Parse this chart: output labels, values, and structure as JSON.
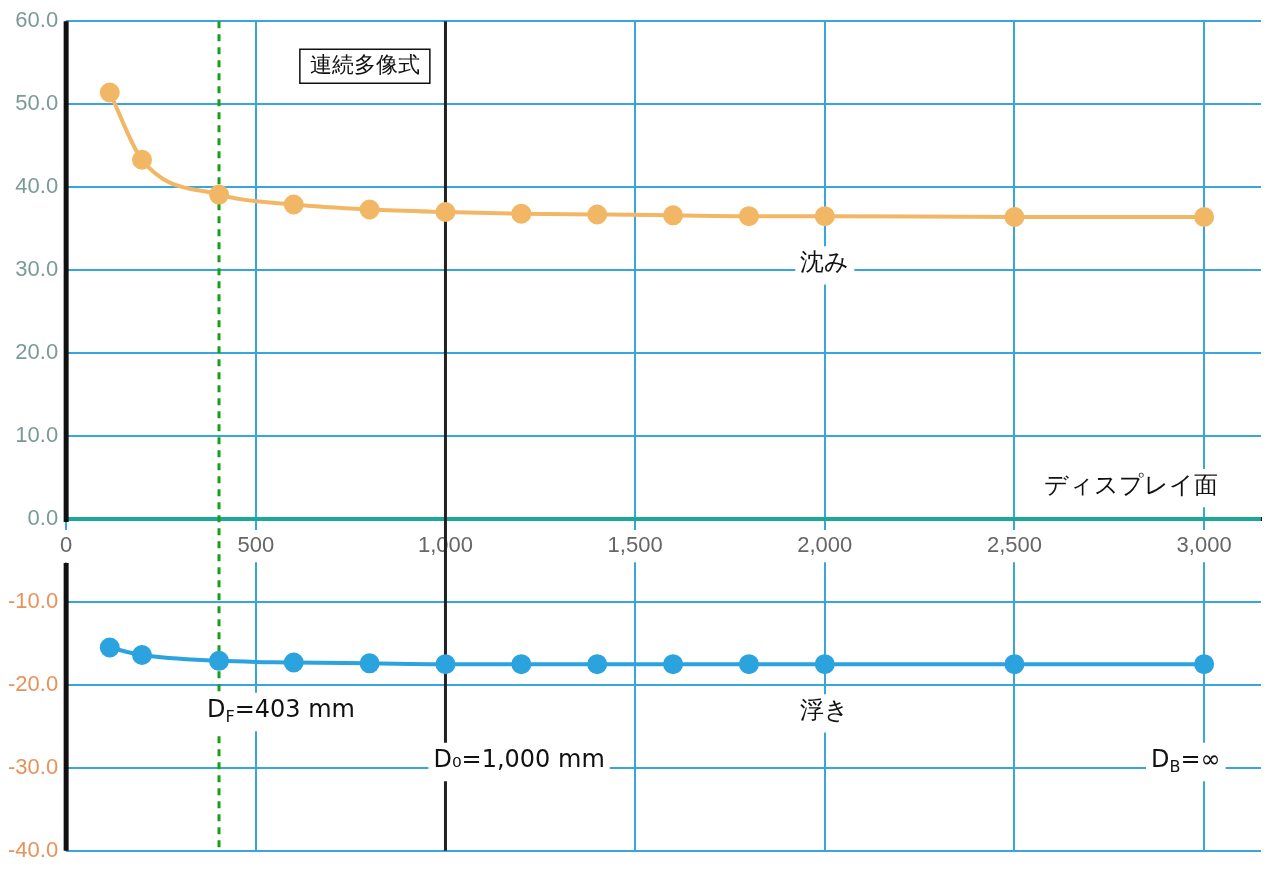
{
  "chart_data": {
    "type": "line",
    "x": [
      115,
      200,
      403,
      600,
      800,
      1000,
      1200,
      1400,
      1600,
      1800,
      2000,
      2500,
      3000
    ],
    "series": [
      {
        "name": "沈み",
        "color": "#f2b765",
        "values": [
          51.4,
          43.3,
          39.1,
          37.9,
          37.3,
          37.0,
          36.8,
          36.7,
          36.6,
          36.5,
          36.5,
          36.4,
          36.4
        ]
      },
      {
        "name": "浮き",
        "color": "#2ba3de",
        "values": [
          -15.5,
          -16.4,
          -17.1,
          -17.3,
          -17.4,
          -17.5,
          -17.5,
          -17.5,
          -17.5,
          -17.5,
          -17.5,
          -17.5,
          -17.5
        ]
      }
    ],
    "xlim": [
      0,
      3150
    ],
    "ylim": [
      -40,
      60
    ],
    "xticks": [
      0,
      500,
      {
        "value": 1000,
        "label": "1,000"
      },
      {
        "value": 1500,
        "label": "1,500"
      },
      {
        "value": 2000,
        "label": "2,000"
      },
      {
        "value": 2500,
        "label": "2,500"
      },
      {
        "value": 3000,
        "label": "3,000"
      }
    ],
    "yticks": [
      {
        "value": -40,
        "label": "-40.0"
      },
      {
        "value": -30,
        "label": "-30.0"
      },
      {
        "value": -20,
        "label": "-20.0"
      },
      {
        "value": -10,
        "label": "-10.0"
      },
      {
        "value": 0,
        "label": "0.0"
      },
      {
        "value": 10,
        "label": "10.0"
      },
      {
        "value": 20,
        "label": "20.0"
      },
      {
        "value": 30,
        "label": "30.0"
      },
      {
        "value": 40,
        "label": "40.0"
      },
      {
        "value": 50,
        "label": "50.0"
      },
      {
        "value": 60,
        "label": "60.0"
      }
    ],
    "ref_lines": [
      {
        "axis": "y",
        "value": 0,
        "label": "ディスプレイ面",
        "color": "#1aa89a",
        "line_style": "solid"
      },
      {
        "axis": "x",
        "value": 403,
        "label": "D$_{F}$=403 mm",
        "color": "#1a9e1a",
        "line_style": "dashed"
      },
      {
        "axis": "x",
        "value": 1000,
        "label": "D₀=1,000 mm",
        "color": "#222222",
        "line_style": "solid"
      }
    ],
    "annotations": [
      "連続多像式",
      "D$_{B}$=∞"
    ],
    "grid": true,
    "legend": false,
    "marker": "circle",
    "line_style": "solid"
  }
}
